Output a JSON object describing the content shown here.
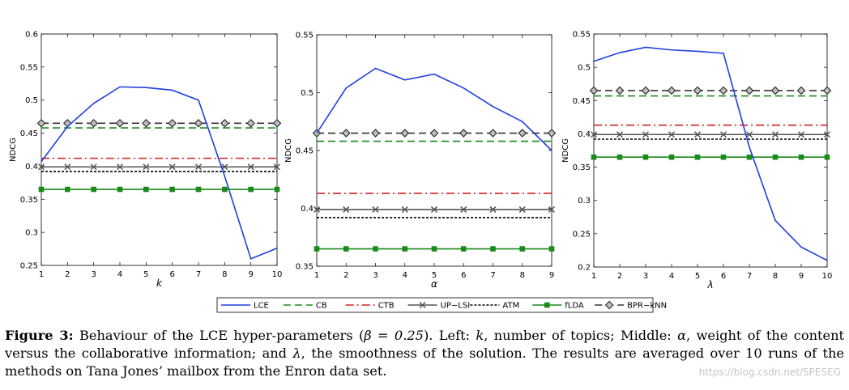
{
  "figure_title": "",
  "chart_data": [
    {
      "type": "line",
      "panel": "left",
      "xlabel": "k",
      "ylabel": "NDCG",
      "xlim": [
        1,
        10
      ],
      "ylim": [
        0.25,
        0.6
      ],
      "x_ticks": [
        1,
        2,
        3,
        4,
        5,
        6,
        7,
        8,
        9,
        10
      ],
      "y_ticks": [
        0.25,
        0.3,
        0.35,
        0.4,
        0.45,
        0.5,
        0.55,
        0.6
      ],
      "x_tick_labels": [
        "1",
        "2",
        "3",
        "4",
        "5",
        "6",
        "7",
        "8",
        "9",
        "10"
      ],
      "y_tick_labels": [
        "0.25",
        "0.3",
        "0.35",
        "0.4",
        "0.45",
        "0.5",
        "0.55",
        "0.6"
      ],
      "x": [
        1,
        2,
        3,
        4,
        5,
        6,
        7,
        8,
        9,
        10
      ],
      "series": [
        {
          "name": "LCE",
          "values": [
            0.407,
            0.46,
            0.495,
            0.52,
            0.519,
            0.515,
            0.5,
            0.385,
            0.26,
            0.276
          ]
        },
        {
          "name": "CB",
          "values": [
            0.458,
            0.458,
            0.458,
            0.458,
            0.458,
            0.458,
            0.458,
            0.458,
            0.458,
            0.458
          ]
        },
        {
          "name": "CTB",
          "values": [
            0.412,
            0.412,
            0.412,
            0.412,
            0.412,
            0.412,
            0.412,
            0.412,
            0.412,
            0.412
          ]
        },
        {
          "name": "UP−LSI",
          "values": [
            0.399,
            0.399,
            0.399,
            0.399,
            0.399,
            0.399,
            0.399,
            0.399,
            0.399,
            0.399
          ]
        },
        {
          "name": "ATM",
          "values": [
            0.392,
            0.392,
            0.392,
            0.392,
            0.392,
            0.392,
            0.392,
            0.392,
            0.392,
            0.392
          ]
        },
        {
          "name": "fLDA",
          "values": [
            0.365,
            0.365,
            0.365,
            0.365,
            0.365,
            0.365,
            0.365,
            0.365,
            0.365,
            0.365
          ]
        },
        {
          "name": "BPR−kNN",
          "values": [
            0.465,
            0.465,
            0.465,
            0.465,
            0.465,
            0.465,
            0.465,
            0.465,
            0.465,
            0.465
          ]
        }
      ]
    },
    {
      "type": "line",
      "panel": "middle",
      "xlabel": "α",
      "ylabel": "NDCG",
      "xlim": [
        1,
        9
      ],
      "ylim": [
        0.35,
        0.55
      ],
      "x_ticks": [
        1,
        2,
        3,
        4,
        5,
        6,
        7,
        8,
        9
      ],
      "y_ticks": [
        0.35,
        0.4,
        0.45,
        0.5,
        0.55
      ],
      "x_tick_labels": [
        "1",
        "2",
        "3",
        "4",
        "5",
        "6",
        "7",
        "8",
        "9"
      ],
      "y_tick_labels": [
        "0.35",
        "0.4",
        "0.45",
        "0.5",
        "0.55"
      ],
      "x": [
        1,
        2,
        3,
        4,
        5,
        6,
        7,
        8,
        9
      ],
      "series": [
        {
          "name": "LCE",
          "values": [
            0.465,
            0.504,
            0.521,
            0.511,
            0.516,
            0.504,
            0.488,
            0.475,
            0.45
          ]
        },
        {
          "name": "CB",
          "values": [
            0.458,
            0.458,
            0.458,
            0.458,
            0.458,
            0.458,
            0.458,
            0.458,
            0.458
          ]
        },
        {
          "name": "CTB",
          "values": [
            0.413,
            0.413,
            0.413,
            0.413,
            0.413,
            0.413,
            0.413,
            0.413,
            0.413
          ]
        },
        {
          "name": "UP−LSI",
          "values": [
            0.399,
            0.399,
            0.399,
            0.399,
            0.399,
            0.399,
            0.399,
            0.399,
            0.399
          ]
        },
        {
          "name": "ATM",
          "values": [
            0.392,
            0.392,
            0.392,
            0.392,
            0.392,
            0.392,
            0.392,
            0.392,
            0.392
          ]
        },
        {
          "name": "fLDA",
          "values": [
            0.365,
            0.365,
            0.365,
            0.365,
            0.365,
            0.365,
            0.365,
            0.365,
            0.365
          ]
        },
        {
          "name": "BPR−kNN",
          "values": [
            0.465,
            0.465,
            0.465,
            0.465,
            0.465,
            0.465,
            0.465,
            0.465,
            0.465
          ]
        }
      ]
    },
    {
      "type": "line",
      "panel": "right",
      "xlabel": "λ",
      "ylabel": "NDCG",
      "xlim": [
        1,
        10
      ],
      "ylim": [
        0.2,
        0.55
      ],
      "x_ticks": [
        1,
        2,
        3,
        4,
        5,
        6,
        7,
        8,
        9,
        10
      ],
      "y_ticks": [
        0.2,
        0.25,
        0.3,
        0.35,
        0.4,
        0.45,
        0.5,
        0.55
      ],
      "x_tick_labels": [
        "1",
        "2",
        "3",
        "4",
        "5",
        "6",
        "7",
        "8",
        "9",
        "10"
      ],
      "y_tick_labels": [
        "0.2",
        "0.25",
        "0.3",
        "0.35",
        "0.4",
        "0.45",
        "0.5",
        "0.55"
      ],
      "x": [
        1,
        2,
        3,
        4,
        5,
        6,
        7,
        8,
        9,
        10
      ],
      "series": [
        {
          "name": "LCE",
          "values": [
            0.509,
            0.522,
            0.53,
            0.526,
            0.524,
            0.521,
            0.38,
            0.27,
            0.23,
            0.21
          ]
        },
        {
          "name": "CB",
          "values": [
            0.457,
            0.457,
            0.457,
            0.457,
            0.457,
            0.457,
            0.457,
            0.457,
            0.457,
            0.457
          ]
        },
        {
          "name": "CTB",
          "values": [
            0.413,
            0.413,
            0.413,
            0.413,
            0.413,
            0.413,
            0.413,
            0.413,
            0.413,
            0.413
          ]
        },
        {
          "name": "UP−LSI",
          "values": [
            0.399,
            0.399,
            0.399,
            0.399,
            0.399,
            0.399,
            0.399,
            0.399,
            0.399,
            0.399
          ]
        },
        {
          "name": "ATM",
          "values": [
            0.392,
            0.392,
            0.392,
            0.392,
            0.392,
            0.392,
            0.392,
            0.392,
            0.392,
            0.392
          ]
        },
        {
          "name": "fLDA",
          "values": [
            0.365,
            0.365,
            0.365,
            0.365,
            0.365,
            0.365,
            0.365,
            0.365,
            0.365,
            0.365
          ]
        },
        {
          "name": "BPR−kNN",
          "values": [
            0.465,
            0.465,
            0.465,
            0.465,
            0.465,
            0.465,
            0.465,
            0.465,
            0.465,
            0.465
          ]
        }
      ]
    }
  ],
  "series_styles": {
    "LCE": {
      "color": "#1f3fdc",
      "dash": "",
      "marker": "none"
    },
    "CB": {
      "color": "#1a8a1a",
      "dash": "9,5",
      "marker": "none"
    },
    "CTB": {
      "color": "#d42020",
      "dash": "10,4,2,4",
      "marker": "none"
    },
    "UP−LSI": {
      "color": "#555555",
      "dash": "",
      "marker": "x"
    },
    "ATM": {
      "color": "#000000",
      "dash": "3,2",
      "marker": "none"
    },
    "fLDA": {
      "color": "#1a8a1a",
      "dash": "",
      "marker": "square"
    },
    "BPR−kNN": {
      "color": "#333333",
      "dash": "9,5",
      "marker": "diamond"
    }
  },
  "legend": {
    "entries": [
      "LCE",
      "CB",
      "CTB",
      "UP−LSI",
      "ATM",
      "fLDA",
      "BPR−kNN"
    ]
  },
  "caption": {
    "label": "Figure 3:",
    "part1": " Behaviour of the LCE hyper-parameters (",
    "beta_expr": "β = 0.25",
    "part2": "). Left: ",
    "k_sym": "k",
    "part3": ", number of topics; Middle: ",
    "alpha_sym": "α",
    "part4": ", weight of the content versus the collaborative information; and ",
    "lambda_sym": "λ",
    "part5": ", the smoothness of the solution. The results are averaged over 10 runs of the methods on Tana Jones’ mailbox from the Enron data set."
  },
  "watermark": "https://blog.csdn.net/SPESEG"
}
